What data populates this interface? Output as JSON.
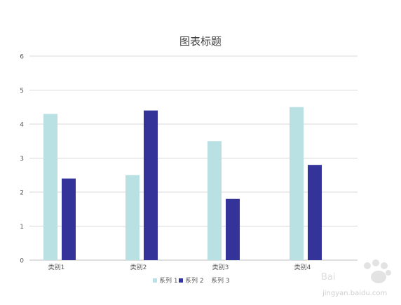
{
  "chart_data": {
    "type": "bar",
    "title": "图表标题",
    "xlabel": "",
    "ylabel": "",
    "categories": [
      "类别1",
      "类别2",
      "类别3",
      "类别4"
    ],
    "ylim": [
      0,
      6
    ],
    "yticks": [
      "0",
      "1",
      "2",
      "3",
      "4",
      "5",
      "6"
    ],
    "grid": true,
    "legend_position": "bottom",
    "series": [
      {
        "name": "系列 1",
        "values": [
          4.3,
          2.5,
          3.5,
          4.5
        ],
        "color": "#b9e0e3"
      },
      {
        "name": "系列 2",
        "values": [
          2.4,
          4.4,
          1.8,
          2.8
        ],
        "color": "#33339a"
      },
      {
        "name": "系列 3",
        "values": [
          null,
          null,
          null,
          null
        ],
        "color": "#ffffff"
      }
    ]
  },
  "watermark": {
    "text": "jingyan.baidu.com",
    "brand": "Bai 经验"
  }
}
